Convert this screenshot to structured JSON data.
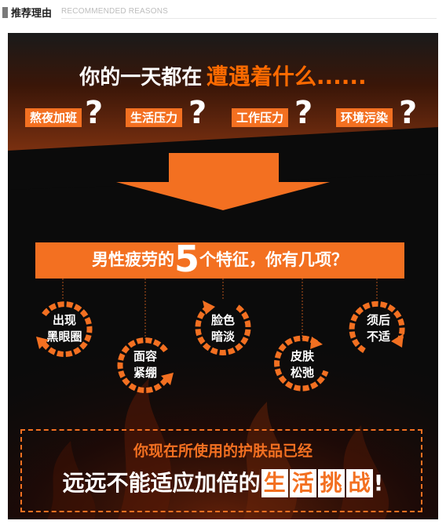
{
  "header": {
    "title": "推荐理由",
    "subtitle_en": "RECOMMENDED REASONS"
  },
  "headline": {
    "part1": "你的一天都在",
    "part2": "遭遇着什么......"
  },
  "tags": [
    {
      "label": "熬夜加班",
      "mark": "?"
    },
    {
      "label": "生活压力",
      "mark": "?"
    },
    {
      "label": "工作压力",
      "mark": "?"
    },
    {
      "label": "环境污染",
      "mark": "?"
    }
  ],
  "banner": {
    "before": "男性疲劳的",
    "number": "5",
    "after": "个特征，你有几项？"
  },
  "features": [
    {
      "line1": "出现",
      "line2": "黑眼圈"
    },
    {
      "line1": "面容",
      "line2": "紧绷"
    },
    {
      "line1": "脸色",
      "line2": "暗淡"
    },
    {
      "line1": "皮肤",
      "line2": "松弛"
    },
    {
      "line1": "须后",
      "line2": "不适"
    }
  ],
  "bottom": {
    "line1": "你现在所使用的护肤品已经",
    "line2_plain": "远远不能适应加倍的",
    "highlight": [
      "生",
      "活",
      "挑",
      "战"
    ],
    "exclaim": "!"
  },
  "colors": {
    "accent": "#f37021",
    "background": "#0c0c0c"
  }
}
